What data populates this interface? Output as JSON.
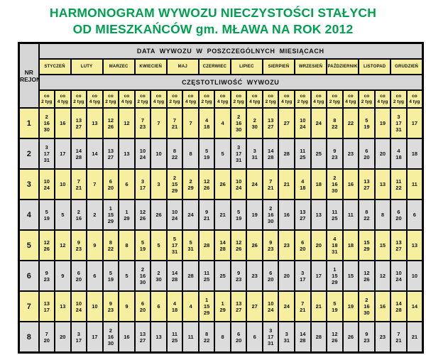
{
  "title": {
    "line1": "HARMONOGRAM WYWOZU NIECZYSTOŚCI STAŁYCH",
    "line2": "OD MIESZKAŃCÓW gm. MŁAWA NA ROK 2012"
  },
  "colors": {
    "title_green": "#00a050",
    "cell_yellow": "#f6efa0",
    "cell_gray": "#dcdcdc",
    "band_gray": "#d5d5d5",
    "border_black": "#000000"
  },
  "table": {
    "header": {
      "nr_rejonu_lines": [
        "NR",
        "REJONU"
      ],
      "data_wywozu": "DATA WYWOZU W POSZCZEGÓLNYCH MIESIĄCACH",
      "czestotliwosc": "CZĘSTOTLIWOŚĆ WYWOZU",
      "months": [
        "STYCZEŃ",
        "LUTY",
        "MARZEC",
        "KWIECIEŃ",
        "MAJ",
        "CZERWIEC",
        "LIPIEC",
        "SIERPIEŃ",
        "WRZESIEŃ",
        "PAŹDZIERNIK",
        "LISTOPAD",
        "GRUDZIEŃ"
      ],
      "freq_co2_lines": [
        "co",
        "2 tyg"
      ],
      "freq_co4_lines": [
        "co",
        "4 tyg"
      ]
    },
    "zones": [
      {
        "nr": "1",
        "cells": [
          [
            "2",
            "16",
            "30"
          ],
          [
            "16"
          ],
          [
            "13",
            "27"
          ],
          [
            "13"
          ],
          [
            "12",
            "26"
          ],
          [
            "12"
          ],
          [
            "7",
            "23"
          ],
          [
            "7"
          ],
          [
            "7",
            "21"
          ],
          [
            "7"
          ],
          [
            "4",
            "18"
          ],
          [
            "4"
          ],
          [
            "2",
            "16",
            "30"
          ],
          [
            "2",
            "30"
          ],
          [
            "13",
            "27"
          ],
          [
            "27"
          ],
          [
            "10",
            "24"
          ],
          [
            "24"
          ],
          [
            "8",
            "22"
          ],
          [
            "22"
          ],
          [
            "5",
            "19"
          ],
          [
            "19"
          ],
          [
            "3",
            "17",
            "31"
          ],
          [
            "17"
          ]
        ]
      },
      {
        "nr": "2",
        "cells": [
          [
            "3",
            "17",
            "31"
          ],
          [
            "17"
          ],
          [
            "14",
            "28"
          ],
          [
            "14"
          ],
          [
            "13",
            "27"
          ],
          [
            "13"
          ],
          [
            "10",
            "24"
          ],
          [
            "10"
          ],
          [
            "8",
            "22"
          ],
          [
            "8"
          ],
          [
            "5",
            "19"
          ],
          [
            "5"
          ],
          [
            "3",
            "17",
            "31"
          ],
          [
            "3",
            "31"
          ],
          [
            "14",
            "28"
          ],
          [
            "28"
          ],
          [
            "11",
            "25"
          ],
          [
            "25"
          ],
          [
            "9",
            "23"
          ],
          [
            "23"
          ],
          [
            "6",
            "20"
          ],
          [
            "20"
          ],
          [
            "4",
            "18"
          ],
          [
            "18"
          ]
        ]
      },
      {
        "nr": "3",
        "cells": [
          [
            "10",
            "24"
          ],
          [
            "10"
          ],
          [
            "7",
            "21"
          ],
          [
            "7"
          ],
          [
            "6",
            "20"
          ],
          [
            "6"
          ],
          [
            "3",
            "17"
          ],
          [
            "3"
          ],
          [
            "2",
            "15",
            "29"
          ],
          [
            "2",
            "29"
          ],
          [
            "12",
            "26"
          ],
          [
            "26"
          ],
          [
            "10",
            "24"
          ],
          [
            "24"
          ],
          [
            "7",
            "21"
          ],
          [
            "21"
          ],
          [
            "4",
            "18"
          ],
          [
            "18"
          ],
          [
            "2",
            "16",
            "30"
          ],
          [
            "16"
          ],
          [
            "13",
            "27"
          ],
          [
            "13"
          ],
          [
            "11",
            "22"
          ],
          [
            "11"
          ]
        ]
      },
      {
        "nr": "4",
        "cells": [
          [
            "5",
            "19"
          ],
          [
            "5"
          ],
          [
            "2",
            "16"
          ],
          [
            "2"
          ],
          [
            "1",
            "15",
            "29"
          ],
          [
            "1",
            "29"
          ],
          [
            "12",
            "26"
          ],
          [
            "26"
          ],
          [
            "10",
            "24"
          ],
          [
            "24"
          ],
          [
            "9",
            "21"
          ],
          [
            "21"
          ],
          [
            "5",
            "19"
          ],
          [
            "19"
          ],
          [
            "2",
            "16",
            "30"
          ],
          [
            "16"
          ],
          [
            "13",
            "27"
          ],
          [
            "13"
          ],
          [
            "11",
            "25"
          ],
          [
            "11"
          ],
          [
            "8",
            "22"
          ],
          [
            "8"
          ],
          [
            "6",
            "20"
          ],
          [
            "6"
          ]
        ]
      },
      {
        "nr": "5",
        "cells": [
          [
            "12",
            "26"
          ],
          [
            "12"
          ],
          [
            "9",
            "23"
          ],
          [
            "9"
          ],
          [
            "8",
            "22"
          ],
          [
            "8"
          ],
          [
            "5",
            "19"
          ],
          [
            "5"
          ],
          [
            "5",
            "17",
            "31"
          ],
          [
            "5",
            "31"
          ],
          [
            "28"
          ],
          [
            "14",
            "28"
          ],
          [
            "12",
            "26"
          ],
          [
            "26"
          ],
          [
            "9",
            "23"
          ],
          [
            "23"
          ],
          [
            "6",
            "20"
          ],
          [
            "20"
          ],
          [
            "4",
            "18",
            "31"
          ],
          [
            "18"
          ],
          [
            "15",
            "29"
          ],
          [
            "15"
          ],
          [
            "13",
            "27"
          ],
          [
            "13"
          ]
        ]
      },
      {
        "nr": "6",
        "cells": [
          [
            "9",
            "23"
          ],
          [
            "9"
          ],
          [
            "6",
            "20"
          ],
          [
            "6"
          ],
          [
            "5",
            "19"
          ],
          [
            "5"
          ],
          [
            "2",
            "16",
            "30"
          ],
          [
            "2",
            "30"
          ],
          [
            "14",
            "28"
          ],
          [
            "28"
          ],
          [
            "11",
            "25"
          ],
          [
            "25"
          ],
          [
            "9",
            "23"
          ],
          [
            "23"
          ],
          [
            "6",
            "20"
          ],
          [
            "20"
          ],
          [
            "3",
            "17"
          ],
          [
            "17"
          ],
          [
            "1",
            "15",
            "29"
          ],
          [
            "15"
          ],
          [
            "12",
            "26"
          ],
          [
            "12"
          ],
          [
            "10",
            "24"
          ],
          [
            "10"
          ]
        ]
      },
      {
        "nr": "7",
        "cells": [
          [
            "13",
            "17"
          ],
          [
            "13"
          ],
          [
            "10",
            "24"
          ],
          [
            "10"
          ],
          [
            "9",
            "23"
          ],
          [
            "9"
          ],
          [
            "6",
            "20"
          ],
          [
            "6"
          ],
          [
            "4",
            "18"
          ],
          [
            "4"
          ],
          [
            "1",
            "15",
            "29"
          ],
          [
            "1",
            "29"
          ],
          [
            "13",
            "27"
          ],
          [
            "27"
          ],
          [
            "10",
            "24"
          ],
          [
            "24"
          ],
          [
            "7",
            "21"
          ],
          [
            "21"
          ],
          [
            "5",
            "19"
          ],
          [
            "19"
          ],
          [
            "2",
            "16",
            "30"
          ],
          [
            "16"
          ],
          [
            "14",
            "28"
          ],
          [
            "14"
          ]
        ]
      },
      {
        "nr": "8",
        "cells": [
          [
            "7",
            "20"
          ],
          [
            "20"
          ],
          [
            "3",
            "17"
          ],
          [
            "17"
          ],
          [
            "2",
            "16",
            "30"
          ],
          [
            "16"
          ],
          [
            "13",
            "27"
          ],
          [
            "13"
          ],
          [
            "11",
            "25"
          ],
          [
            "11"
          ],
          [
            "8",
            "22"
          ],
          [
            "8"
          ],
          [
            "6",
            "20"
          ],
          [
            "6"
          ],
          [
            "3",
            "17",
            "31"
          ],
          [
            "3",
            "31"
          ],
          [
            "14",
            "28"
          ],
          [
            "28"
          ],
          [
            "12",
            "26"
          ],
          [
            "26"
          ],
          [
            "9",
            "23"
          ],
          [
            "23"
          ],
          [
            "7",
            "21"
          ],
          [
            "21"
          ]
        ]
      }
    ]
  }
}
